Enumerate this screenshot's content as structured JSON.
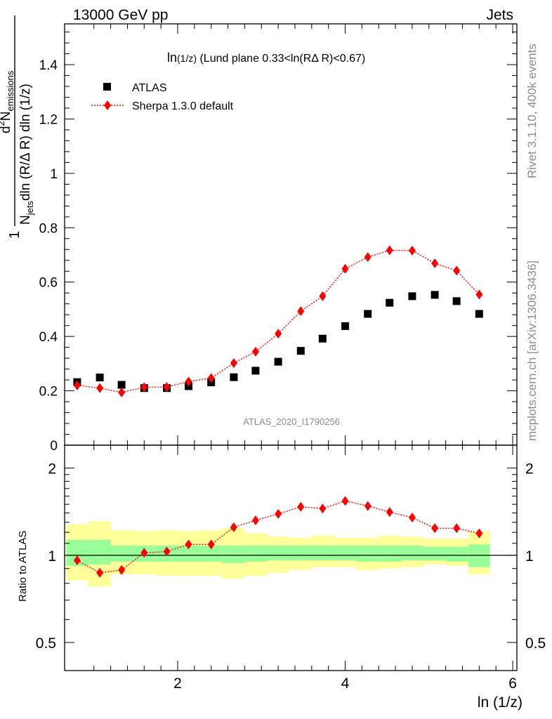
{
  "header": {
    "left": "13000 GeV pp",
    "right": "Jets"
  },
  "main_title": {
    "ln": "ln",
    "arg": "(1/z)",
    "rest": " (Lund plane 0.33<ln(RΔ R)<0.67)"
  },
  "watermark": "ATLAS_2020_I1790256",
  "side_labels": {
    "rivet": "Rivet 3.1.10,  400k events",
    "mcplots": "mcplots.cern.ch [arXiv:1306.3436]"
  },
  "legend": {
    "data_label": "ATLAS",
    "mc_label": "Sherpa 1.3.0 default"
  },
  "ylabel_top": {
    "one": "1",
    "njets": "N",
    "njets_sub": "jets",
    "den_rest": "dln (R/Δ R) dln (1/z)",
    "num_d": "d",
    "num_sup": "2",
    "num_n": "N",
    "num_sub": "emissions"
  },
  "ylabel_bottom": "Ratio to ATLAS",
  "xlabel": "ln (1/z)",
  "colors": {
    "data": "#000000",
    "mc": "#ff0000",
    "band_inner": "#99ff99",
    "band_outer": "#ffff99"
  },
  "chart_data": [
    {
      "type": "scatter",
      "panel": "main",
      "xlim": [
        0.65,
        6.05
      ],
      "ylim": [
        0,
        1.55
      ],
      "yticks": [
        0,
        0.2,
        0.4,
        0.6,
        0.8,
        1,
        1.2,
        1.4
      ],
      "yticklabels": [
        "0",
        "0.2",
        "0.4",
        "0.6",
        "0.8",
        "1",
        "1.2",
        "1.4"
      ],
      "x": [
        0.8,
        1.07,
        1.33,
        1.6,
        1.87,
        2.13,
        2.4,
        2.67,
        2.93,
        3.2,
        3.47,
        3.73,
        4.0,
        4.27,
        4.53,
        4.8,
        5.07,
        5.33,
        5.6
      ],
      "series": [
        {
          "name": "ATLAS",
          "values": [
            0.232,
            0.249,
            0.222,
            0.21,
            0.21,
            0.217,
            0.231,
            0.25,
            0.274,
            0.307,
            0.347,
            0.392,
            0.438,
            0.483,
            0.524,
            0.548,
            0.553,
            0.53,
            0.483
          ]
        },
        {
          "name": "Sherpa 1.3.0 default",
          "values": [
            0.22,
            0.21,
            0.194,
            0.213,
            0.214,
            0.234,
            0.247,
            0.302,
            0.344,
            0.41,
            0.493,
            0.548,
            0.649,
            0.692,
            0.717,
            0.716,
            0.669,
            0.642,
            0.554
          ]
        }
      ]
    },
    {
      "type": "line",
      "panel": "ratio",
      "ylog": true,
      "xlim": [
        0.65,
        6.05
      ],
      "ylim": [
        0.4,
        2.4
      ],
      "xticks": [
        2,
        4,
        6
      ],
      "xticklabels": [
        "2",
        "4",
        "6"
      ],
      "yticks": [
        0.5,
        1,
        2
      ],
      "yticklabels": [
        "0.5",
        "1",
        "2"
      ],
      "bin_edges": [
        0.67,
        0.93,
        1.2,
        1.47,
        1.73,
        2.0,
        2.27,
        2.53,
        2.8,
        3.07,
        3.33,
        3.6,
        3.87,
        4.13,
        4.4,
        4.67,
        4.93,
        5.2,
        5.47,
        5.73
      ],
      "band_inner_lo": [
        0.92,
        0.93,
        0.95,
        0.95,
        0.95,
        0.95,
        0.95,
        0.94,
        0.95,
        0.96,
        0.96,
        0.96,
        0.96,
        0.95,
        0.95,
        0.96,
        0.96,
        0.95,
        0.91
      ],
      "band_inner_hi": [
        1.13,
        1.13,
        1.08,
        1.08,
        1.08,
        1.08,
        1.08,
        1.08,
        1.08,
        1.08,
        1.08,
        1.08,
        1.08,
        1.08,
        1.08,
        1.08,
        1.07,
        1.07,
        1.09
      ],
      "band_outer_lo": [
        0.82,
        0.78,
        0.86,
        0.86,
        0.85,
        0.85,
        0.85,
        0.83,
        0.85,
        0.87,
        0.89,
        0.91,
        0.91,
        0.89,
        0.9,
        0.91,
        0.93,
        0.92,
        0.86
      ],
      "band_outer_hi": [
        1.28,
        1.31,
        1.22,
        1.21,
        1.22,
        1.21,
        1.22,
        1.24,
        1.19,
        1.16,
        1.15,
        1.17,
        1.15,
        1.15,
        1.17,
        1.16,
        1.14,
        1.14,
        1.21
      ],
      "reference": 1,
      "x": [
        0.8,
        1.07,
        1.33,
        1.6,
        1.87,
        2.13,
        2.4,
        2.67,
        2.93,
        3.2,
        3.47,
        3.73,
        4.0,
        4.27,
        4.53,
        4.8,
        5.07,
        5.33,
        5.6
      ],
      "series": [
        {
          "name": "Sherpa 1.3.0 default",
          "values": [
            0.96,
            0.87,
            0.89,
            1.02,
            1.03,
            1.09,
            1.09,
            1.25,
            1.32,
            1.39,
            1.47,
            1.45,
            1.54,
            1.48,
            1.41,
            1.35,
            1.24,
            1.24,
            1.19
          ]
        }
      ]
    }
  ]
}
